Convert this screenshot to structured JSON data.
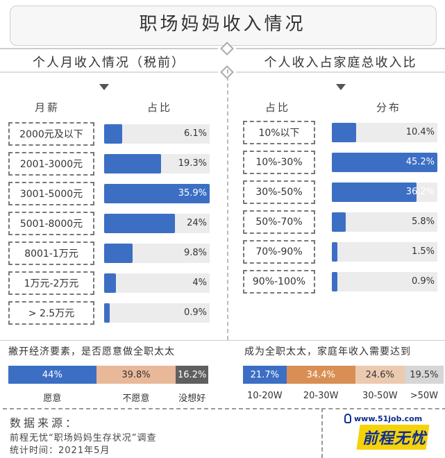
{
  "header": {
    "title": "职场妈妈收入情况"
  },
  "colors": {
    "bar": "#3c6fc4",
    "track": "#ececec"
  },
  "chart_data": [
    {
      "type": "bar",
      "title": "个人月收入情况（税前）",
      "xlabel": "月薪",
      "ylabel": "占比",
      "categories": [
        "2000元及以下",
        "2001-3000元",
        "3001-5000元",
        "5001-8000元",
        "8001-1万元",
        "1万元-2万元",
        "> 2.5万元"
      ],
      "values": [
        6.1,
        19.3,
        35.9,
        24,
        9.8,
        4,
        0.9
      ],
      "value_labels": [
        "6.1%",
        "19.3%",
        "35.9%",
        "24%",
        "9.8%",
        "4%",
        "0.9%"
      ],
      "xlim": [
        0,
        35.9
      ]
    },
    {
      "type": "bar",
      "title": "个人收入占家庭总收入比",
      "xlabel": "占比",
      "ylabel": "分布",
      "categories": [
        "10%以下",
        "10%-30%",
        "30%-50%",
        "50%-70%",
        "70%-90%",
        "90%-100%"
      ],
      "values": [
        10.4,
        45.2,
        36.2,
        5.8,
        1.5,
        0.9
      ],
      "value_labels": [
        "10.4%",
        "45.2%",
        "36.2%",
        "5.8%",
        "1.5%",
        "0.9%"
      ],
      "xlim": [
        0,
        45.2
      ]
    },
    {
      "type": "bar",
      "title": "撇开经济要素，是否愿意做全职太太",
      "stacked": true,
      "categories": [
        "愿意",
        "不愿意",
        "没想好"
      ],
      "values": [
        44,
        39.8,
        16.2
      ],
      "value_labels": [
        "44%",
        "39.8%",
        "16.2%"
      ],
      "colors": [
        "#3c6fc4",
        "#e8b899",
        "#5f5f5f"
      ]
    },
    {
      "type": "bar",
      "title": "成为全职太太，家庭年收入需要达到",
      "stacked": true,
      "categories": [
        "10-20W",
        "20-30W",
        "30-50W",
        ">50W"
      ],
      "values": [
        21.7,
        34.4,
        24.6,
        19.5
      ],
      "value_labels": [
        "21.7%",
        "34.4%",
        "24.6%",
        "19.5%"
      ],
      "colors": [
        "#3c6fc4",
        "#d98f54",
        "#eccab0",
        "#d6d6d6"
      ]
    }
  ],
  "source": {
    "title": "数据来源：",
    "line1": "前程无忧“职场妈妈生存状况”调查",
    "line2": "统计时间：2021年5月"
  },
  "logo": {
    "url": "www.51job.com",
    "name": "前程无忧"
  }
}
